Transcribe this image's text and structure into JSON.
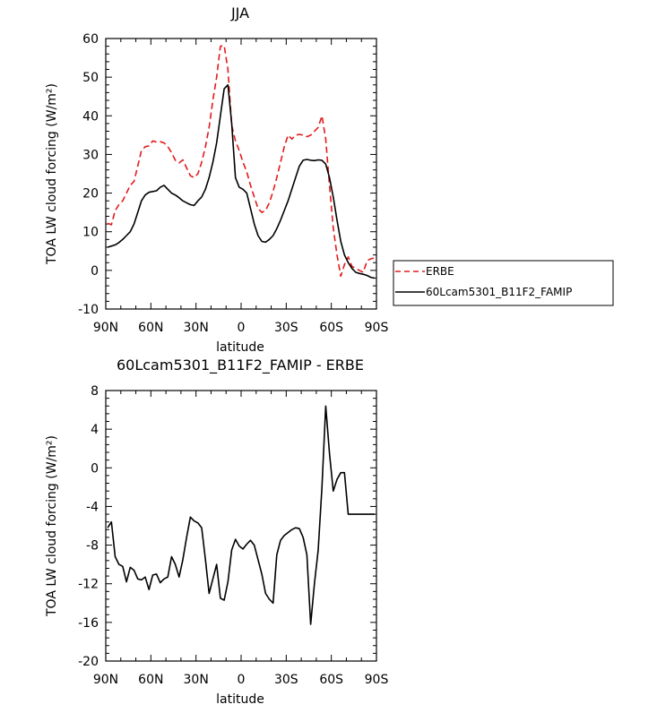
{
  "chart_data": [
    {
      "type": "line",
      "title": "JJA",
      "xlabel": "latitude",
      "ylabel": "TOA LW cloud forcing (W/m²)",
      "x_tick_labels": [
        "90N",
        "60N",
        "30N",
        "0",
        "30S",
        "60S",
        "90S"
      ],
      "x_ticks": [
        90,
        60,
        30,
        0,
        -30,
        -60,
        -90
      ],
      "xlim": [
        90,
        -90
      ],
      "ylim": [
        -10,
        60
      ],
      "y_ticks": [
        -10,
        0,
        10,
        20,
        30,
        40,
        50,
        60
      ],
      "grid": false,
      "legend_position": "right",
      "series": [
        {
          "name": "ERBE",
          "color": "#e31a1c",
          "style": "dashed",
          "x": [
            88.75,
            86.25,
            83.75,
            81.25,
            78.75,
            76.25,
            73.75,
            71.25,
            68.75,
            66.25,
            63.75,
            61.25,
            58.75,
            56.25,
            53.75,
            51.25,
            48.75,
            46.25,
            43.75,
            41.25,
            38.75,
            36.25,
            33.75,
            31.25,
            28.75,
            26.25,
            23.75,
            21.25,
            18.75,
            16.25,
            13.75,
            11.25,
            8.75,
            6.25,
            3.75,
            1.25,
            -1.25,
            -3.75,
            -6.25,
            -8.75,
            -11.25,
            -13.75,
            -16.25,
            -18.75,
            -21.25,
            -23.75,
            -26.25,
            -28.75,
            -31.25,
            -33.75,
            -36.25,
            -38.75,
            -41.25,
            -43.75,
            -46.25,
            -48.75,
            -51.25,
            -53.75,
            -56.25,
            -58.75,
            -61.25,
            -63.75,
            -66.25,
            -68.75,
            -71.25,
            -73.75,
            -76.25,
            -78.75,
            -81.25,
            -83.75,
            -86.25,
            -88.75
          ],
          "y": [
            12.2,
            11.8,
            15.5,
            17.0,
            18.0,
            20.0,
            22.0,
            23.0,
            27.0,
            31.0,
            32.0,
            32.2,
            33.5,
            33.2,
            33.3,
            33.0,
            32.0,
            30.5,
            28.5,
            27.8,
            28.6,
            26.5,
            24.5,
            24.0,
            25.0,
            28.0,
            32.0,
            37.0,
            44.0,
            50.0,
            58.0,
            58.2,
            52.0,
            37.5,
            33.5,
            31.0,
            28.0,
            25.5,
            22.0,
            19.0,
            16.0,
            15.0,
            15.5,
            17.5,
            20.5,
            24.0,
            28.0,
            32.0,
            35.0,
            34.0,
            35.0,
            35.2,
            35.0,
            34.6,
            35.0,
            36.0,
            37.0,
            40.0,
            34.0,
            22.0,
            11.0,
            4.0,
            -1.5,
            1.5,
            3.5,
            1.0,
            0.5,
            0.0,
            -0.5,
            2.5,
            3.0,
            3.2
          ]
        },
        {
          "name": "60Lcam5301_B11F2_FAMIP",
          "color": "#000000",
          "style": "solid",
          "x": [
            88.75,
            86.25,
            83.75,
            81.25,
            78.75,
            76.25,
            73.75,
            71.25,
            68.75,
            66.25,
            63.75,
            61.25,
            58.75,
            56.25,
            53.75,
            51.25,
            48.75,
            46.25,
            43.75,
            41.25,
            38.75,
            36.25,
            33.75,
            31.25,
            28.75,
            26.25,
            23.75,
            21.25,
            18.75,
            16.25,
            13.75,
            11.25,
            8.75,
            6.25,
            3.75,
            1.25,
            -1.25,
            -3.75,
            -6.25,
            -8.75,
            -11.25,
            -13.75,
            -16.25,
            -18.75,
            -21.25,
            -23.75,
            -26.25,
            -28.75,
            -31.25,
            -33.75,
            -36.25,
            -38.75,
            -41.25,
            -43.75,
            -46.25,
            -48.75,
            -51.25,
            -53.75,
            -56.25,
            -58.75,
            -61.25,
            -63.75,
            -66.25,
            -68.75,
            -71.25,
            -73.75,
            -76.25,
            -78.75,
            -81.25,
            -83.75,
            -86.25,
            -88.75
          ],
          "y": [
            6.0,
            6.3,
            6.6,
            7.2,
            8.0,
            9.0,
            10.0,
            12.0,
            15.0,
            18.0,
            19.5,
            20.2,
            20.4,
            20.6,
            21.5,
            22.0,
            21.0,
            20.0,
            19.5,
            18.8,
            18.0,
            17.5,
            17.0,
            16.8,
            18.0,
            19.0,
            21.0,
            24.0,
            28.0,
            33.0,
            40.0,
            47.0,
            48.0,
            38.0,
            24.0,
            21.5,
            21.0,
            20.0,
            16.0,
            12.0,
            9.0,
            7.5,
            7.3,
            8.0,
            9.0,
            10.8,
            13.0,
            15.5,
            18.0,
            21.0,
            24.0,
            27.0,
            28.5,
            28.7,
            28.5,
            28.4,
            28.6,
            28.5,
            27.5,
            24.0,
            19.0,
            13.0,
            7.5,
            4.0,
            2.0,
            0.5,
            -0.5,
            -0.8,
            -1.0,
            -1.3,
            -1.8,
            -2.0
          ]
        }
      ]
    },
    {
      "type": "line",
      "title": "60Lcam5301_B11F2_FAMIP - ERBE",
      "xlabel": "latitude",
      "ylabel": "TOA LW cloud forcing (W/m²)",
      "x_tick_labels": [
        "90N",
        "60N",
        "30N",
        "0",
        "30S",
        "60S",
        "90S"
      ],
      "x_ticks": [
        90,
        60,
        30,
        0,
        -30,
        -60,
        -90
      ],
      "xlim": [
        90,
        -90
      ],
      "ylim": [
        -20,
        8
      ],
      "y_ticks": [
        -20,
        -16,
        -12,
        -8,
        -4,
        0,
        4,
        8
      ],
      "grid": false,
      "series": [
        {
          "color": "#000000",
          "style": "solid",
          "x": [
            88.75,
            86.25,
            83.75,
            81.25,
            78.75,
            76.25,
            73.75,
            71.25,
            68.75,
            66.25,
            63.75,
            61.25,
            58.75,
            56.25,
            53.75,
            51.25,
            48.75,
            46.25,
            43.75,
            41.25,
            38.75,
            36.25,
            33.75,
            31.25,
            28.75,
            26.25,
            23.75,
            21.25,
            18.75,
            16.25,
            13.75,
            11.25,
            8.75,
            6.25,
            3.75,
            1.25,
            -1.25,
            -3.75,
            -6.25,
            -8.75,
            -11.25,
            -13.75,
            -16.25,
            -18.75,
            -21.25,
            -23.75,
            -26.25,
            -28.75,
            -31.25,
            -33.75,
            -36.25,
            -38.75,
            -41.25,
            -43.75,
            -46.25,
            -48.75,
            -51.25,
            -53.75,
            -56.25,
            -58.75,
            -61.25,
            -63.75,
            -66.25,
            -68.75,
            -71.25,
            -73.75,
            -76.25,
            -78.75,
            -81.25,
            -83.75,
            -86.25,
            -88.75
          ],
          "y": [
            -6.2,
            -5.6,
            -9.2,
            -10.0,
            -10.2,
            -11.8,
            -10.3,
            -10.6,
            -11.5,
            -11.6,
            -11.3,
            -12.6,
            -11.1,
            -11.0,
            -11.9,
            -11.5,
            -11.3,
            -9.2,
            -10.0,
            -11.3,
            -9.5,
            -7.2,
            -5.1,
            -5.5,
            -5.7,
            -6.2,
            -9.5,
            -13.0,
            -11.5,
            -10.0,
            -13.5,
            -13.7,
            -11.8,
            -8.5,
            -7.4,
            -8.1,
            -8.4,
            -7.9,
            -7.5,
            -8.0,
            -9.5,
            -11.0,
            -13.0,
            -13.6,
            -14.0,
            -9.0,
            -7.5,
            -7.0,
            -6.7,
            -6.4,
            -6.2,
            -6.3,
            -7.2,
            -9.0,
            -16.2,
            -12.0,
            -8.5,
            -2.0,
            6.4,
            1.5,
            -2.4,
            -1.2,
            -0.5,
            -0.5,
            -4.8,
            -4.8,
            -4.8,
            -4.8,
            -4.8,
            -4.8,
            -4.8,
            -4.8
          ]
        }
      ]
    }
  ],
  "legend": {
    "items": [
      "ERBE",
      "60Lcam5301_B11F2_FAMIP"
    ]
  }
}
